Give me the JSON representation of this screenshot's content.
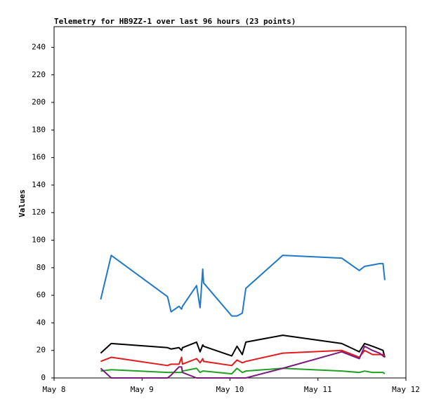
{
  "chart_data": {
    "type": "line",
    "title": "Telemetry for HB9ZZ-1 over last 96 hours (23 points)",
    "y_label": "Values",
    "x": [
      0.53,
      0.65,
      1.29,
      1.33,
      1.42,
      1.45,
      1.46,
      1.62,
      1.66,
      1.69,
      1.7,
      2.02,
      2.08,
      2.14,
      2.18,
      2.6,
      3.27,
      3.47,
      3.53,
      3.62,
      3.7,
      3.74,
      3.76
    ],
    "xlim": [
      0,
      4
    ],
    "xticks": [
      {
        "value": 0,
        "label": "May 8"
      },
      {
        "value": 1,
        "label": "May 9"
      },
      {
        "value": 2,
        "label": "May 10"
      },
      {
        "value": 3,
        "label": "May 11"
      },
      {
        "value": 4,
        "label": "May 12"
      }
    ],
    "ylim": [
      0,
      255
    ],
    "yticks": [
      0,
      20,
      40,
      60,
      80,
      100,
      120,
      140,
      160,
      180,
      200,
      220,
      240
    ],
    "grid": false,
    "series": [
      {
        "color": "#1f78c8",
        "values": [
          57,
          89,
          59,
          48,
          52,
          50,
          52,
          67,
          51,
          79,
          69,
          45,
          45,
          47,
          65,
          89,
          87,
          78,
          81,
          82,
          83,
          83,
          71
        ]
      },
      {
        "color": "#000000",
        "values": [
          18,
          25,
          22,
          21,
          22,
          20,
          22,
          26,
          19,
          24,
          23,
          16,
          23,
          17,
          26,
          31,
          25,
          19,
          25,
          23,
          21,
          20,
          15
        ]
      },
      {
        "color": "#e31a1c",
        "values": [
          12,
          15,
          9,
          10,
          10,
          15,
          10,
          14,
          11,
          14,
          12,
          9,
          13,
          11,
          12,
          18,
          20,
          15,
          20,
          17,
          17,
          17,
          16
        ]
      },
      {
        "color": "#22a022",
        "values": [
          5,
          6,
          4,
          4,
          4,
          4,
          5,
          7,
          4,
          5,
          5,
          3,
          7,
          4,
          5,
          7,
          5,
          4,
          5,
          4,
          4,
          4,
          3
        ]
      },
      {
        "color": "#7b1a7b",
        "values": [
          7,
          0,
          0,
          2,
          8,
          8,
          4,
          0,
          0,
          0,
          0,
          0,
          0,
          0,
          0,
          7,
          19,
          14,
          23,
          20,
          18,
          16,
          15
        ]
      }
    ]
  }
}
